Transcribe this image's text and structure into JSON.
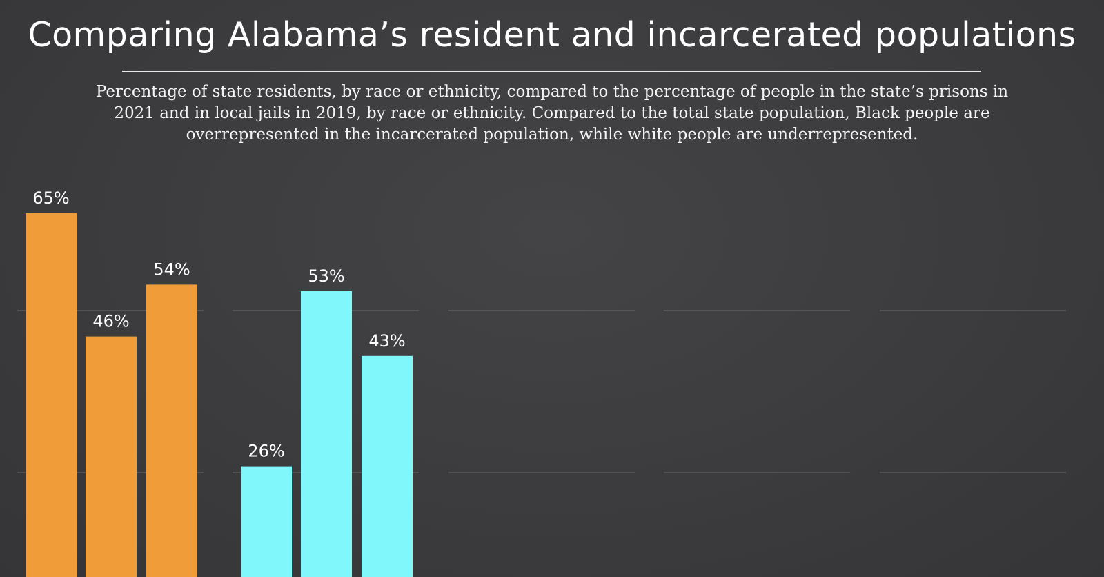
{
  "title": "Comparing Alabama’s resident and incarcerated populations",
  "subtitle": "Percentage of state residents, by race or ethnicity, compared to the percentage of people in the state’s prisons in 2021 and in local jails in 2019, by race or ethnicity. Compared to the total state population, Black people are overrepresented in the incarcerated population, while white people are underrepresented.",
  "chart_data": {
    "type": "bar",
    "title": "Comparing Alabama’s resident and incarcerated populations",
    "ylim": [
      0,
      70
    ],
    "gridlines": [
      25,
      50
    ],
    "grid": true,
    "panels": [
      {
        "color": "#f09c38",
        "values": [
          65,
          46,
          54
        ],
        "labels": [
          "65%",
          "46%",
          "54%"
        ]
      },
      {
        "color": "#80f8fb",
        "values": [
          26,
          53,
          43
        ],
        "labels": [
          "26%",
          "53%",
          "43%"
        ]
      },
      {
        "color": "",
        "values": [],
        "labels": []
      },
      {
        "color": "",
        "values": [],
        "labels": []
      },
      {
        "color": "",
        "values": [],
        "labels": []
      }
    ]
  }
}
